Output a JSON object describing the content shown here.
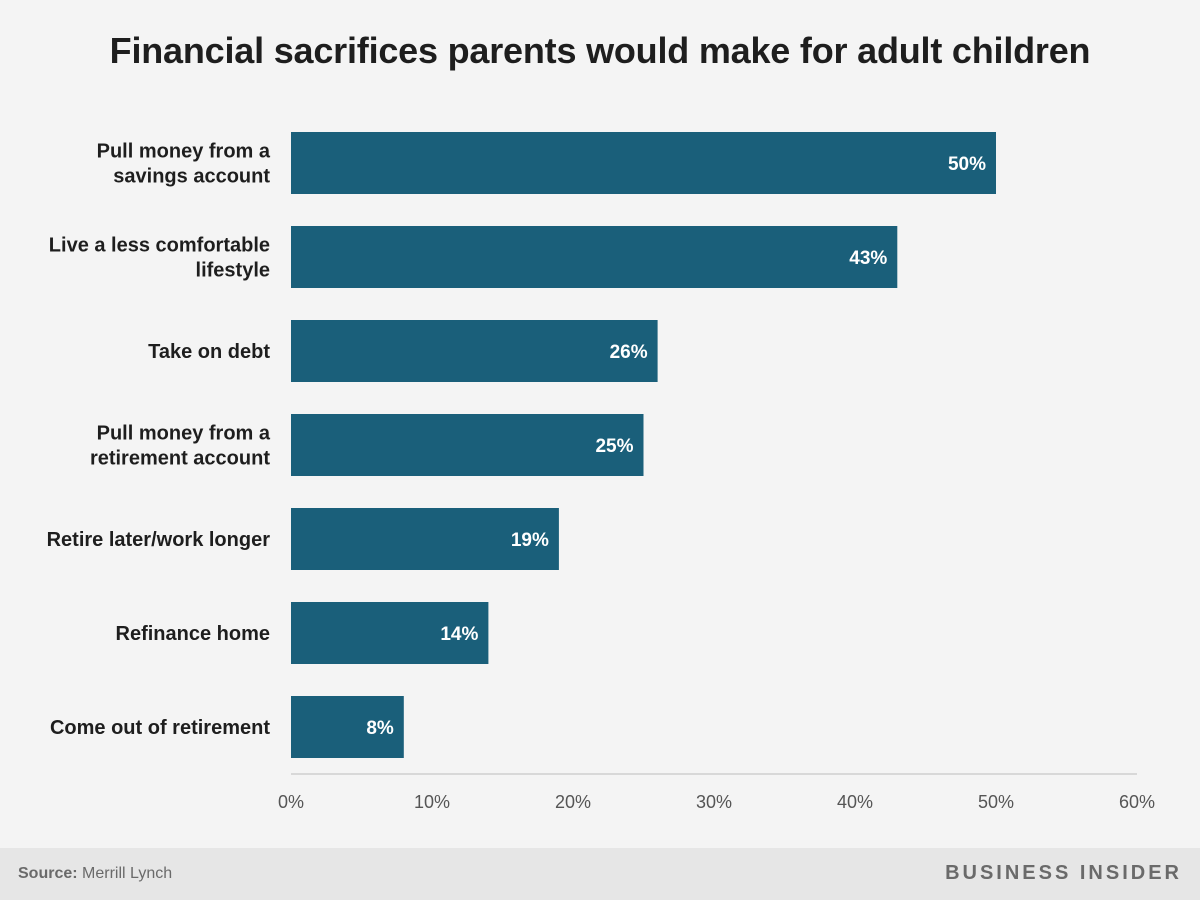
{
  "chart_data": {
    "type": "bar",
    "orientation": "horizontal",
    "title": "Financial sacrifices parents would make for adult children",
    "categories": [
      [
        "Pull money from a",
        "savings account"
      ],
      [
        "Live a less comfortable",
        "lifestyle"
      ],
      [
        "Take on debt"
      ],
      [
        "Pull money from a",
        "retirement account"
      ],
      [
        "Retire later/work longer"
      ],
      [
        "Refinance home"
      ],
      [
        "Come out of retirement"
      ]
    ],
    "values": [
      50,
      43,
      26,
      25,
      19,
      14,
      8
    ],
    "value_labels": [
      "50%",
      "43%",
      "26%",
      "25%",
      "19%",
      "14%",
      "8%"
    ],
    "xlim": [
      0,
      60
    ],
    "x_ticks": [
      0,
      10,
      20,
      30,
      40,
      50,
      60
    ],
    "x_tick_labels": [
      "0%",
      "10%",
      "20%",
      "30%",
      "40%",
      "50%",
      "60%"
    ],
    "grid": false,
    "bar_color": "#1a5f7a"
  },
  "footer": {
    "source_label": "Source:",
    "source_text": " Merrill Lynch",
    "brand": "BUSINESS INSIDER"
  }
}
